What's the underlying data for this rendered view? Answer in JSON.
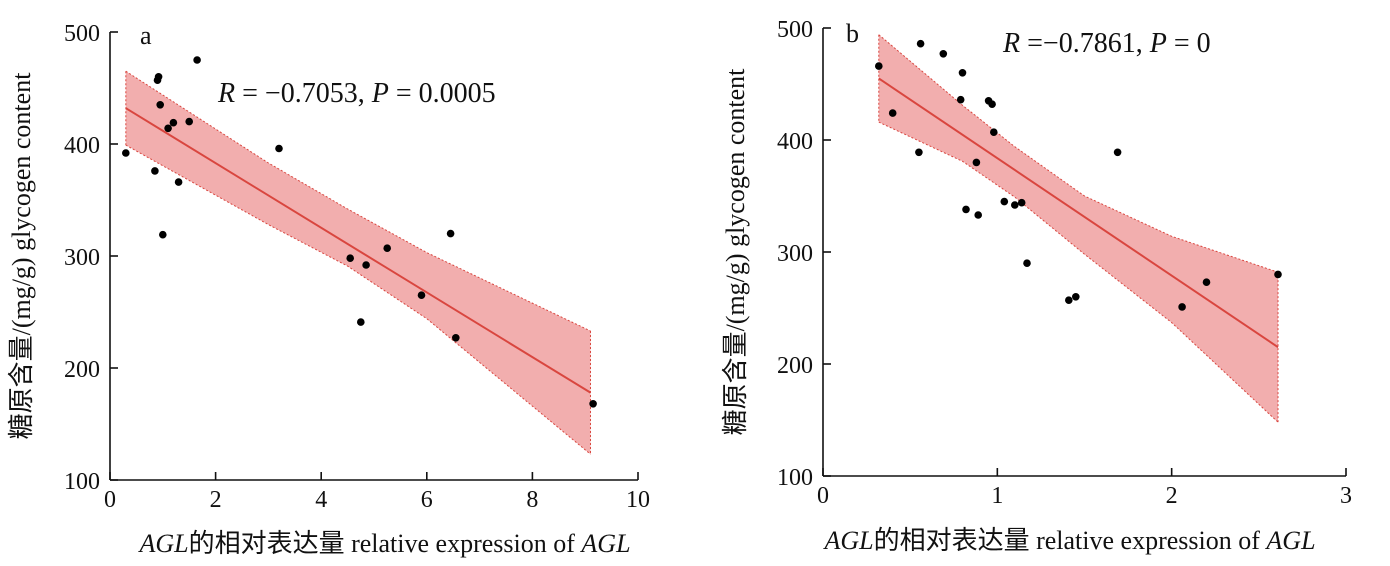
{
  "colors": {
    "band": "#f0a0a0",
    "fit": "#d9463f",
    "axis": "#111111",
    "point": "#000000"
  },
  "chart_data": [
    {
      "type": "scatter",
      "panel_label": "a",
      "annotation": {
        "r_label": "R",
        "r_value": " = −0.7053, ",
        "p_label": "P",
        "p_value": " = 0.0005"
      },
      "xlabel": {
        "italic": "AGL",
        "rest": "的相对表达量 relative expression of ",
        "italic2": "AGL"
      },
      "ylabel": "糖原含量/(mg/g) glycogen content",
      "xlim": [
        0,
        10
      ],
      "ylim": [
        100,
        500
      ],
      "xticks": [
        0,
        2,
        4,
        6,
        8,
        10
      ],
      "yticks": [
        100,
        200,
        300,
        400,
        500
      ],
      "points": [
        {
          "x": 0.3,
          "y": 392
        },
        {
          "x": 0.85,
          "y": 376
        },
        {
          "x": 0.9,
          "y": 457
        },
        {
          "x": 0.92,
          "y": 460
        },
        {
          "x": 0.95,
          "y": 435
        },
        {
          "x": 1.0,
          "y": 319
        },
        {
          "x": 1.1,
          "y": 414
        },
        {
          "x": 1.2,
          "y": 419
        },
        {
          "x": 1.3,
          "y": 366
        },
        {
          "x": 1.5,
          "y": 420
        },
        {
          "x": 1.65,
          "y": 475
        },
        {
          "x": 3.2,
          "y": 396
        },
        {
          "x": 4.55,
          "y": 298
        },
        {
          "x": 4.75,
          "y": 241
        },
        {
          "x": 4.85,
          "y": 292
        },
        {
          "x": 5.25,
          "y": 307
        },
        {
          "x": 5.9,
          "y": 265
        },
        {
          "x": 6.45,
          "y": 320
        },
        {
          "x": 6.55,
          "y": 227
        },
        {
          "x": 9.15,
          "y": 168
        }
      ],
      "fit": {
        "x": [
          0.3,
          9.1
        ],
        "y": [
          432,
          178
        ]
      },
      "band": {
        "x": [
          0.3,
          3.0,
          4.5,
          6.0,
          9.1
        ],
        "upper": [
          465,
          383,
          342,
          303,
          233
        ],
        "lower": [
          399,
          328,
          291,
          244,
          123
        ]
      }
    },
    {
      "type": "scatter",
      "panel_label": "b",
      "annotation": {
        "r_label": "R",
        "r_value": " =−0.7861, ",
        "p_label": "P",
        "p_value": " = 0"
      },
      "xlabel": {
        "italic": "AGL",
        "rest": "的相对表达量 relative expression of ",
        "italic2": "AGL"
      },
      "ylabel": "糖原含量/(mg/g) glycogen content",
      "xlim": [
        0,
        3
      ],
      "ylim": [
        100,
        500
      ],
      "xticks": [
        0,
        1,
        2,
        3
      ],
      "yticks": [
        100,
        200,
        300,
        400,
        500
      ],
      "points": [
        {
          "x": 0.32,
          "y": 466
        },
        {
          "x": 0.4,
          "y": 424
        },
        {
          "x": 0.55,
          "y": 389
        },
        {
          "x": 0.56,
          "y": 486
        },
        {
          "x": 0.69,
          "y": 477
        },
        {
          "x": 0.79,
          "y": 436
        },
        {
          "x": 0.8,
          "y": 460
        },
        {
          "x": 0.82,
          "y": 338
        },
        {
          "x": 0.88,
          "y": 380
        },
        {
          "x": 0.89,
          "y": 333
        },
        {
          "x": 0.95,
          "y": 435
        },
        {
          "x": 0.97,
          "y": 432
        },
        {
          "x": 0.98,
          "y": 407
        },
        {
          "x": 1.04,
          "y": 345
        },
        {
          "x": 1.1,
          "y": 342
        },
        {
          "x": 1.14,
          "y": 344
        },
        {
          "x": 1.17,
          "y": 290
        },
        {
          "x": 1.41,
          "y": 257
        },
        {
          "x": 1.45,
          "y": 260
        },
        {
          "x": 1.69,
          "y": 389
        },
        {
          "x": 2.06,
          "y": 251
        },
        {
          "x": 2.2,
          "y": 273
        },
        {
          "x": 2.61,
          "y": 280
        }
      ],
      "fit": {
        "x": [
          0.32,
          2.61
        ],
        "y": [
          455,
          215
        ]
      },
      "band": {
        "x": [
          0.32,
          0.8,
          1.1,
          1.5,
          2.0,
          2.61
        ],
        "upper": [
          494,
          431,
          394,
          350,
          314,
          282
        ],
        "lower": [
          416,
          381,
          349,
          298,
          237,
          148
        ]
      }
    }
  ]
}
